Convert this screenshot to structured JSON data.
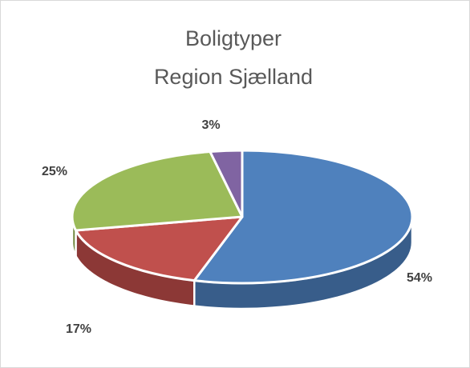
{
  "chart_data": {
    "type": "pie3d",
    "title": "Boligtyper",
    "subtitle": "Region Sjælland",
    "values": [
      54,
      17,
      25,
      3
    ],
    "value_labels": [
      "54%",
      "17%",
      "25%",
      "3%"
    ],
    "colors": [
      "#4f81bd",
      "#c0504d",
      "#9bbb59",
      "#8064a2"
    ],
    "side_colors": [
      "#385d8a",
      "#8c3836",
      "#71893f",
      "#5c4776"
    ]
  }
}
